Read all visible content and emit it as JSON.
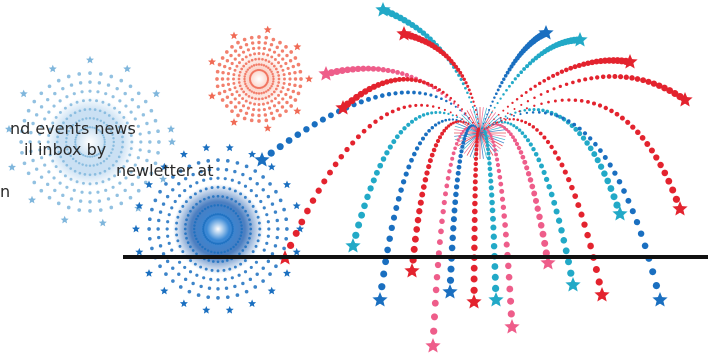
{
  "promo": {
    "lines": [
      "nd events news",
      "il inbox by",
      "newletter at",
      "n"
    ]
  },
  "colors": {
    "red": "#e3232e",
    "pink": "#ee5d8a",
    "cyan": "#22a9c7",
    "blue": "#1a6fc0",
    "light_blue": "#7fb6dc",
    "coral": "#f06a55",
    "ground": "#111111"
  },
  "icons": [
    "star-icon"
  ]
}
